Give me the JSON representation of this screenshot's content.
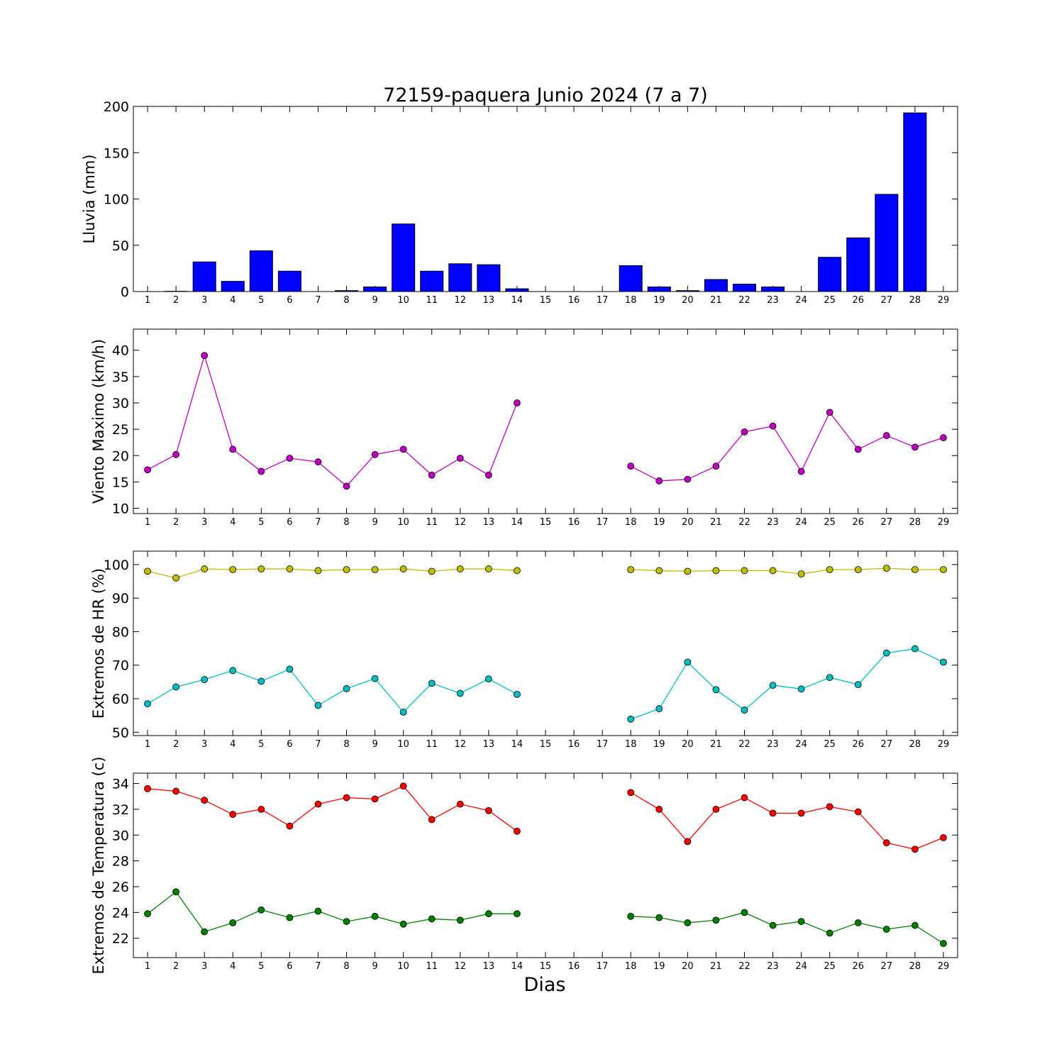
{
  "title": "72159-paquera Junio 2024  (7 a 7)",
  "xlabel": "Dias",
  "chart_data": [
    {
      "type": "bar",
      "ylabel": "Lluvia (mm)",
      "ylim": [
        0,
        200
      ],
      "yticks": [
        0,
        50,
        100,
        150,
        200
      ],
      "x": [
        1,
        2,
        3,
        4,
        5,
        6,
        7,
        8,
        9,
        10,
        11,
        12,
        13,
        14,
        15,
        16,
        17,
        18,
        19,
        20,
        21,
        22,
        23,
        24,
        25,
        26,
        27,
        28,
        29
      ],
      "series": [
        {
          "color": "#0000ff",
          "values": [
            0,
            0.3,
            32,
            11,
            44,
            22,
            0,
            1,
            5,
            73,
            22,
            30,
            29,
            3,
            0,
            0,
            0,
            28,
            5,
            1,
            13,
            8,
            5,
            0,
            37,
            58,
            105,
            193,
            0
          ]
        }
      ]
    },
    {
      "type": "line",
      "ylabel": "Viento Maximo (km/h)",
      "ylim": [
        9,
        44
      ],
      "yticks": [
        10,
        15,
        20,
        25,
        30,
        35,
        40
      ],
      "x": [
        1,
        2,
        3,
        4,
        5,
        6,
        7,
        8,
        9,
        10,
        11,
        12,
        13,
        14,
        15,
        16,
        17,
        18,
        19,
        20,
        21,
        22,
        23,
        24,
        25,
        26,
        27,
        28,
        29
      ],
      "series": [
        {
          "color": "#bf00bf",
          "values": [
            17.3,
            20.2,
            39,
            21.2,
            17,
            19.5,
            18.8,
            14.2,
            20.2,
            21.2,
            16.3,
            19.5,
            16.3,
            30,
            null,
            null,
            null,
            18,
            15.2,
            15.5,
            18,
            24.5,
            25.6,
            17,
            28.2,
            21.2,
            23.8,
            21.6,
            23.4
          ]
        }
      ]
    },
    {
      "type": "line",
      "ylabel": "Extremos de HR (%)",
      "ylim": [
        49,
        104
      ],
      "yticks": [
        50,
        60,
        70,
        80,
        90,
        100
      ],
      "x": [
        1,
        2,
        3,
        4,
        5,
        6,
        7,
        8,
        9,
        10,
        11,
        12,
        13,
        14,
        15,
        16,
        17,
        18,
        19,
        20,
        21,
        22,
        23,
        24,
        25,
        26,
        27,
        28,
        29
      ],
      "series": [
        {
          "color": "#bfbf00",
          "values": [
            98,
            96,
            98.7,
            98.5,
            98.7,
            98.7,
            98.2,
            98.5,
            98.5,
            98.7,
            98,
            98.7,
            98.7,
            98.2,
            null,
            null,
            null,
            98.5,
            98.2,
            98,
            98.2,
            98.2,
            98.2,
            97.2,
            98.5,
            98.5,
            98.9,
            98.5,
            98.5
          ]
        },
        {
          "color": "#00bfbf",
          "values": [
            58.5,
            63.5,
            65.7,
            68.4,
            65.2,
            68.8,
            58,
            63,
            66,
            56,
            64.6,
            61.6,
            65.9,
            61.3,
            null,
            null,
            null,
            53.9,
            57,
            70.9,
            62.7,
            56.6,
            64,
            62.9,
            66.3,
            64.2,
            73.6,
            74.9,
            70.9
          ]
        }
      ]
    },
    {
      "type": "line",
      "ylabel": "Extremos de Temperatura (c)",
      "ylim": [
        20.5,
        34.8
      ],
      "yticks": [
        22,
        24,
        26,
        28,
        30,
        32,
        34
      ],
      "x": [
        1,
        2,
        3,
        4,
        5,
        6,
        7,
        8,
        9,
        10,
        11,
        12,
        13,
        14,
        15,
        16,
        17,
        18,
        19,
        20,
        21,
        22,
        23,
        24,
        25,
        26,
        27,
        28,
        29
      ],
      "series": [
        {
          "color": "#ff0000",
          "values": [
            33.6,
            33.4,
            32.7,
            31.6,
            32,
            30.7,
            32.4,
            32.9,
            32.8,
            33.8,
            31.2,
            32.4,
            31.9,
            30.3,
            null,
            null,
            null,
            33.3,
            32,
            29.5,
            32,
            32.9,
            31.7,
            31.7,
            32.2,
            31.8,
            29.4,
            28.9,
            29.8
          ]
        },
        {
          "color": "#008000",
          "values": [
            23.9,
            25.6,
            22.5,
            23.2,
            24.2,
            23.6,
            24.1,
            23.3,
            23.7,
            23.1,
            23.5,
            23.4,
            23.9,
            23.9,
            null,
            null,
            null,
            23.7,
            23.6,
            23.2,
            23.4,
            24,
            23,
            23.3,
            22.4,
            23.2,
            22.7,
            23,
            21.6
          ]
        }
      ]
    }
  ]
}
